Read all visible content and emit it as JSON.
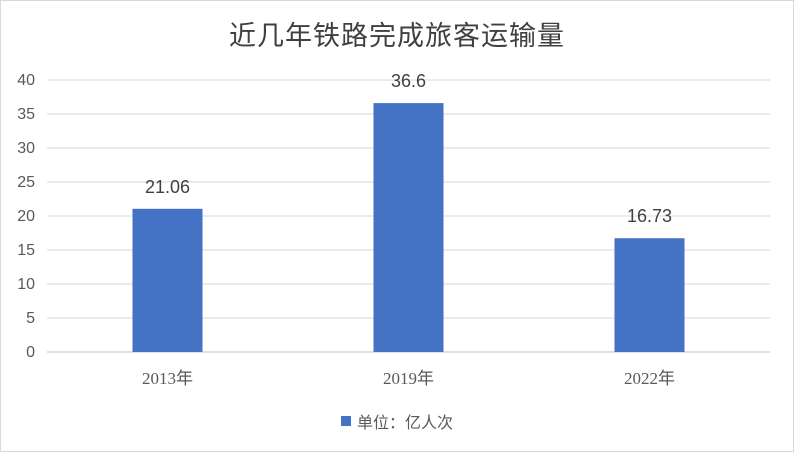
{
  "chart_data": {
    "type": "bar",
    "title": "近几年铁路完成旅客运输量",
    "categories": [
      "2013年",
      "2019年",
      "2022年"
    ],
    "series": [
      {
        "name": "单位：亿人次",
        "values": [
          21.06,
          36.6,
          16.73
        ],
        "labels": [
          "21.06",
          "36.6",
          "16.73"
        ]
      }
    ],
    "xlabel": "",
    "ylabel": "",
    "ylim": [
      0,
      40
    ],
    "yticks": [
      0,
      5,
      10,
      15,
      20,
      25,
      30,
      35,
      40
    ],
    "grid": true,
    "legend": "bottom",
    "colors": {
      "bar": "#4472c4",
      "grid": "#d9d9d9",
      "axis": "#bfbfbf"
    }
  }
}
